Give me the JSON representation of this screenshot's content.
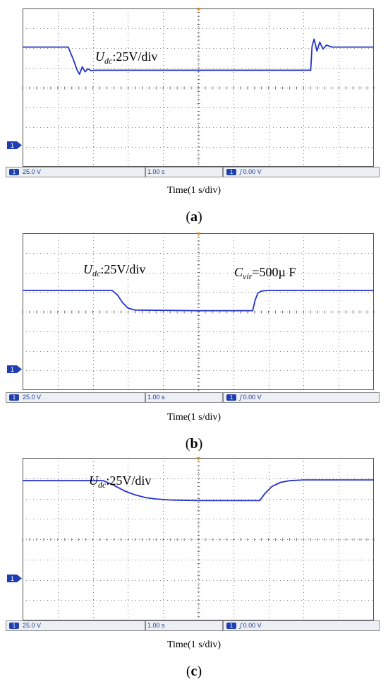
{
  "figure": {
    "trace_color": "#2432c8",
    "grid_color": "#555555",
    "badge_color": "#1f3fb0",
    "panels": [
      {
        "id": "a",
        "label": "a",
        "axis_caption": "Time(1 s/div)",
        "annotations": [
          {
            "symbol": "U",
            "subscript": "dc",
            "text": ":25V/div"
          }
        ],
        "status": {
          "channel": "1",
          "volts_div": "25.0 V",
          "time_div": "1.00 s",
          "trigger_channel": "1",
          "trigger_level": "0.00 V",
          "trigger_edge": "ʃ"
        },
        "ground_marker": "1"
      },
      {
        "id": "b",
        "label": "b",
        "axis_caption": "Time(1 s/div)",
        "annotations": [
          {
            "symbol": "U",
            "subscript": "dc",
            "text": ":25V/div"
          },
          {
            "symbol": "C",
            "subscript": "vir",
            "text": "=500µ F"
          }
        ],
        "status": {
          "channel": "1",
          "volts_div": "25.0 V",
          "time_div": "1.00 s",
          "trigger_channel": "1",
          "trigger_level": "0.00 V",
          "trigger_edge": "ʃ"
        },
        "ground_marker": "1"
      },
      {
        "id": "c",
        "label": "c",
        "axis_caption": "Time(1 s/div)",
        "annotations": [
          {
            "symbol": "U",
            "subscript": "dc",
            "text": ":25V/div"
          }
        ],
        "status": {
          "channel": "1",
          "volts_div": "25.0 V",
          "time_div": "1.00 s",
          "trigger_channel": "1",
          "trigger_level": "0.00 V",
          "trigger_edge": "ʃ"
        },
        "ground_marker": "1"
      }
    ]
  },
  "chart_data": [
    {
      "type": "line",
      "xlabel": "Time(1 s/div)",
      "ylabel": "",
      "x_divisions": 10,
      "y_divisions": 8,
      "xlim": [
        0,
        10
      ],
      "ylim": [
        0,
        8
      ],
      "units": {
        "x": "div (1 s/div)",
        "y": "div (25 V/div)"
      },
      "series": [
        {
          "values_x": [
            0,
            1.3,
            1.45,
            1.55,
            1.62,
            1.7,
            1.78,
            1.86,
            1.95,
            2.1,
            5,
            8.2,
            8.24,
            8.3,
            8.38,
            8.46,
            8.55,
            8.65,
            8.8,
            10
          ],
          "values_y": [
            6.05,
            6.05,
            5.4,
            4.9,
            4.68,
            5.05,
            4.8,
            4.95,
            4.86,
            4.88,
            4.88,
            4.88,
            6.1,
            6.45,
            5.85,
            6.3,
            5.95,
            6.15,
            6.05,
            6.05
          ]
        }
      ]
    },
    {
      "type": "line",
      "xlabel": "Time(1 s/div)",
      "ylabel": "",
      "x_divisions": 10,
      "y_divisions": 8,
      "xlim": [
        0,
        10
      ],
      "ylim": [
        0,
        8
      ],
      "units": {
        "x": "div (1 s/div)",
        "y": "div (25 V/div)"
      },
      "series": [
        {
          "values_x": [
            0,
            2.55,
            2.7,
            2.85,
            3.0,
            3.2,
            5,
            6.55,
            6.62,
            6.7,
            6.8,
            7.0,
            10
          ],
          "values_y": [
            5.08,
            5.08,
            4.85,
            4.45,
            4.18,
            4.08,
            4.05,
            4.05,
            4.6,
            4.95,
            5.05,
            5.08,
            5.08
          ]
        }
      ]
    },
    {
      "type": "line",
      "xlabel": "Time(1 s/div)",
      "ylabel": "",
      "x_divisions": 10,
      "y_divisions": 8,
      "xlim": [
        0,
        10
      ],
      "ylim": [
        0,
        8
      ],
      "units": {
        "x": "div (1 s/div)",
        "y": "div (25 V/div)"
      },
      "series": [
        {
          "values_x": [
            0,
            2.3,
            2.6,
            2.9,
            3.2,
            3.5,
            3.8,
            4.2,
            5,
            6.75,
            6.9,
            7.1,
            7.35,
            7.6,
            8,
            10
          ],
          "values_y": [
            6.88,
            6.88,
            6.65,
            6.38,
            6.18,
            6.05,
            5.98,
            5.93,
            5.9,
            5.9,
            6.25,
            6.6,
            6.8,
            6.88,
            6.92,
            6.92
          ]
        }
      ]
    }
  ]
}
